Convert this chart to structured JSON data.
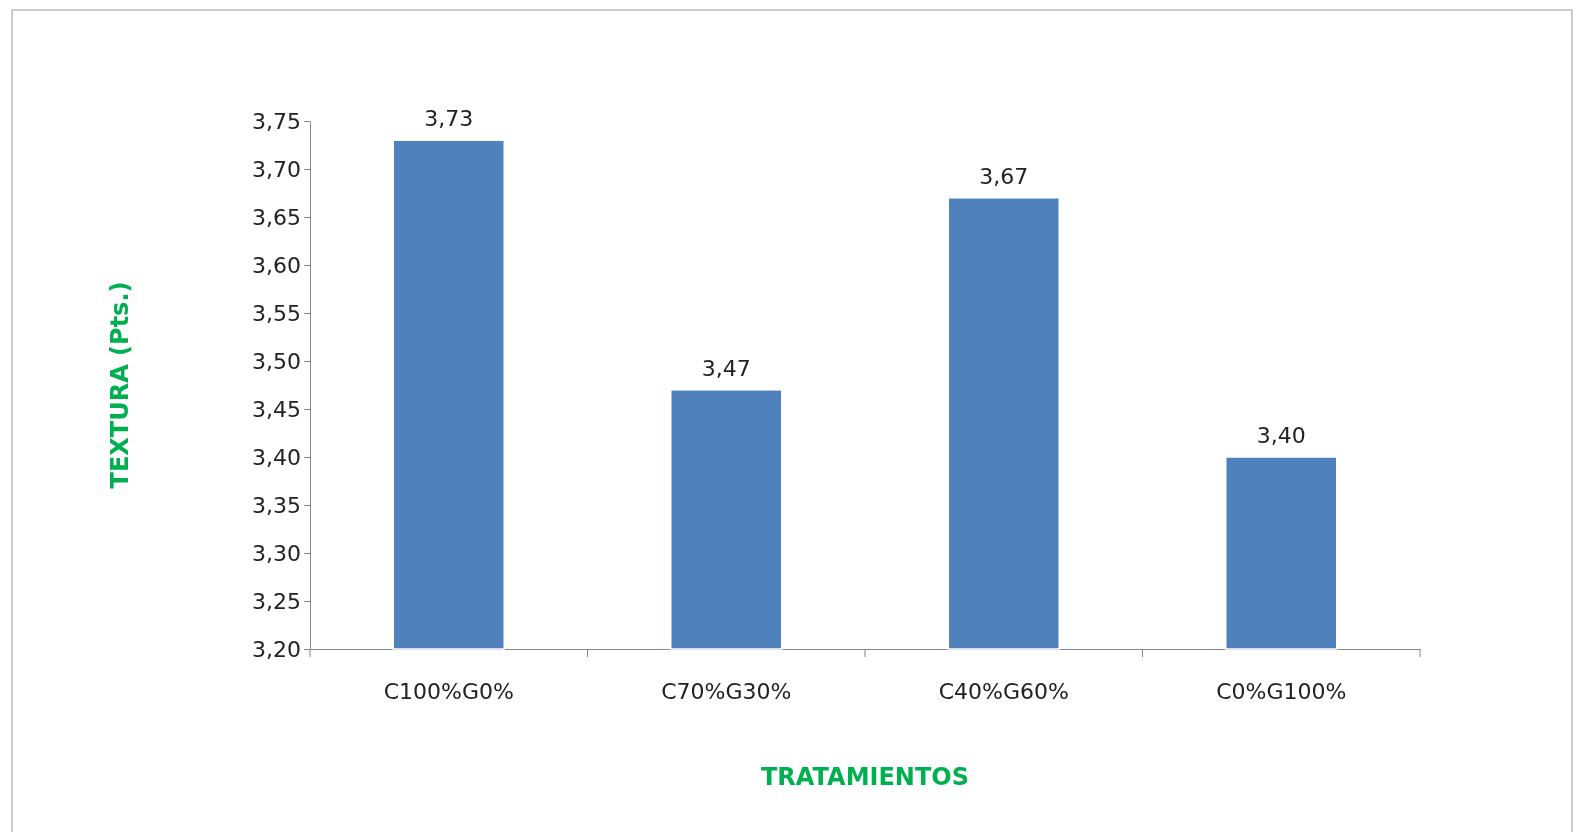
{
  "chart_data": {
    "type": "bar",
    "xlabel": "TRATAMIENTOS",
    "ylabel": "TEXTURA  (Pts.)",
    "categories": [
      "C100%G0%",
      "C70%G30%",
      "C40%G60%",
      "C0%G100%"
    ],
    "values": [
      3.73,
      3.47,
      3.67,
      3.4
    ],
    "value_labels": [
      "3,73",
      "3,47",
      "3,67",
      "3,40"
    ],
    "color": "#4f81bd",
    "ylim": [
      3.2,
      3.75
    ],
    "yticks": [
      {
        "value": 3.2,
        "label": "3,20"
      },
      {
        "value": 3.25,
        "label": "3,25"
      },
      {
        "value": 3.3,
        "label": "3,30"
      },
      {
        "value": 3.35,
        "label": "3,35"
      },
      {
        "value": 3.4,
        "label": "3,40"
      },
      {
        "value": 3.45,
        "label": "3,45"
      },
      {
        "value": 3.5,
        "label": "3,50"
      },
      {
        "value": 3.55,
        "label": "3,55"
      },
      {
        "value": 3.6,
        "label": "3,60"
      },
      {
        "value": 3.65,
        "label": "3,65"
      },
      {
        "value": 3.7,
        "label": "3,70"
      },
      {
        "value": 3.75,
        "label": "3,75"
      }
    ],
    "grid": false
  }
}
